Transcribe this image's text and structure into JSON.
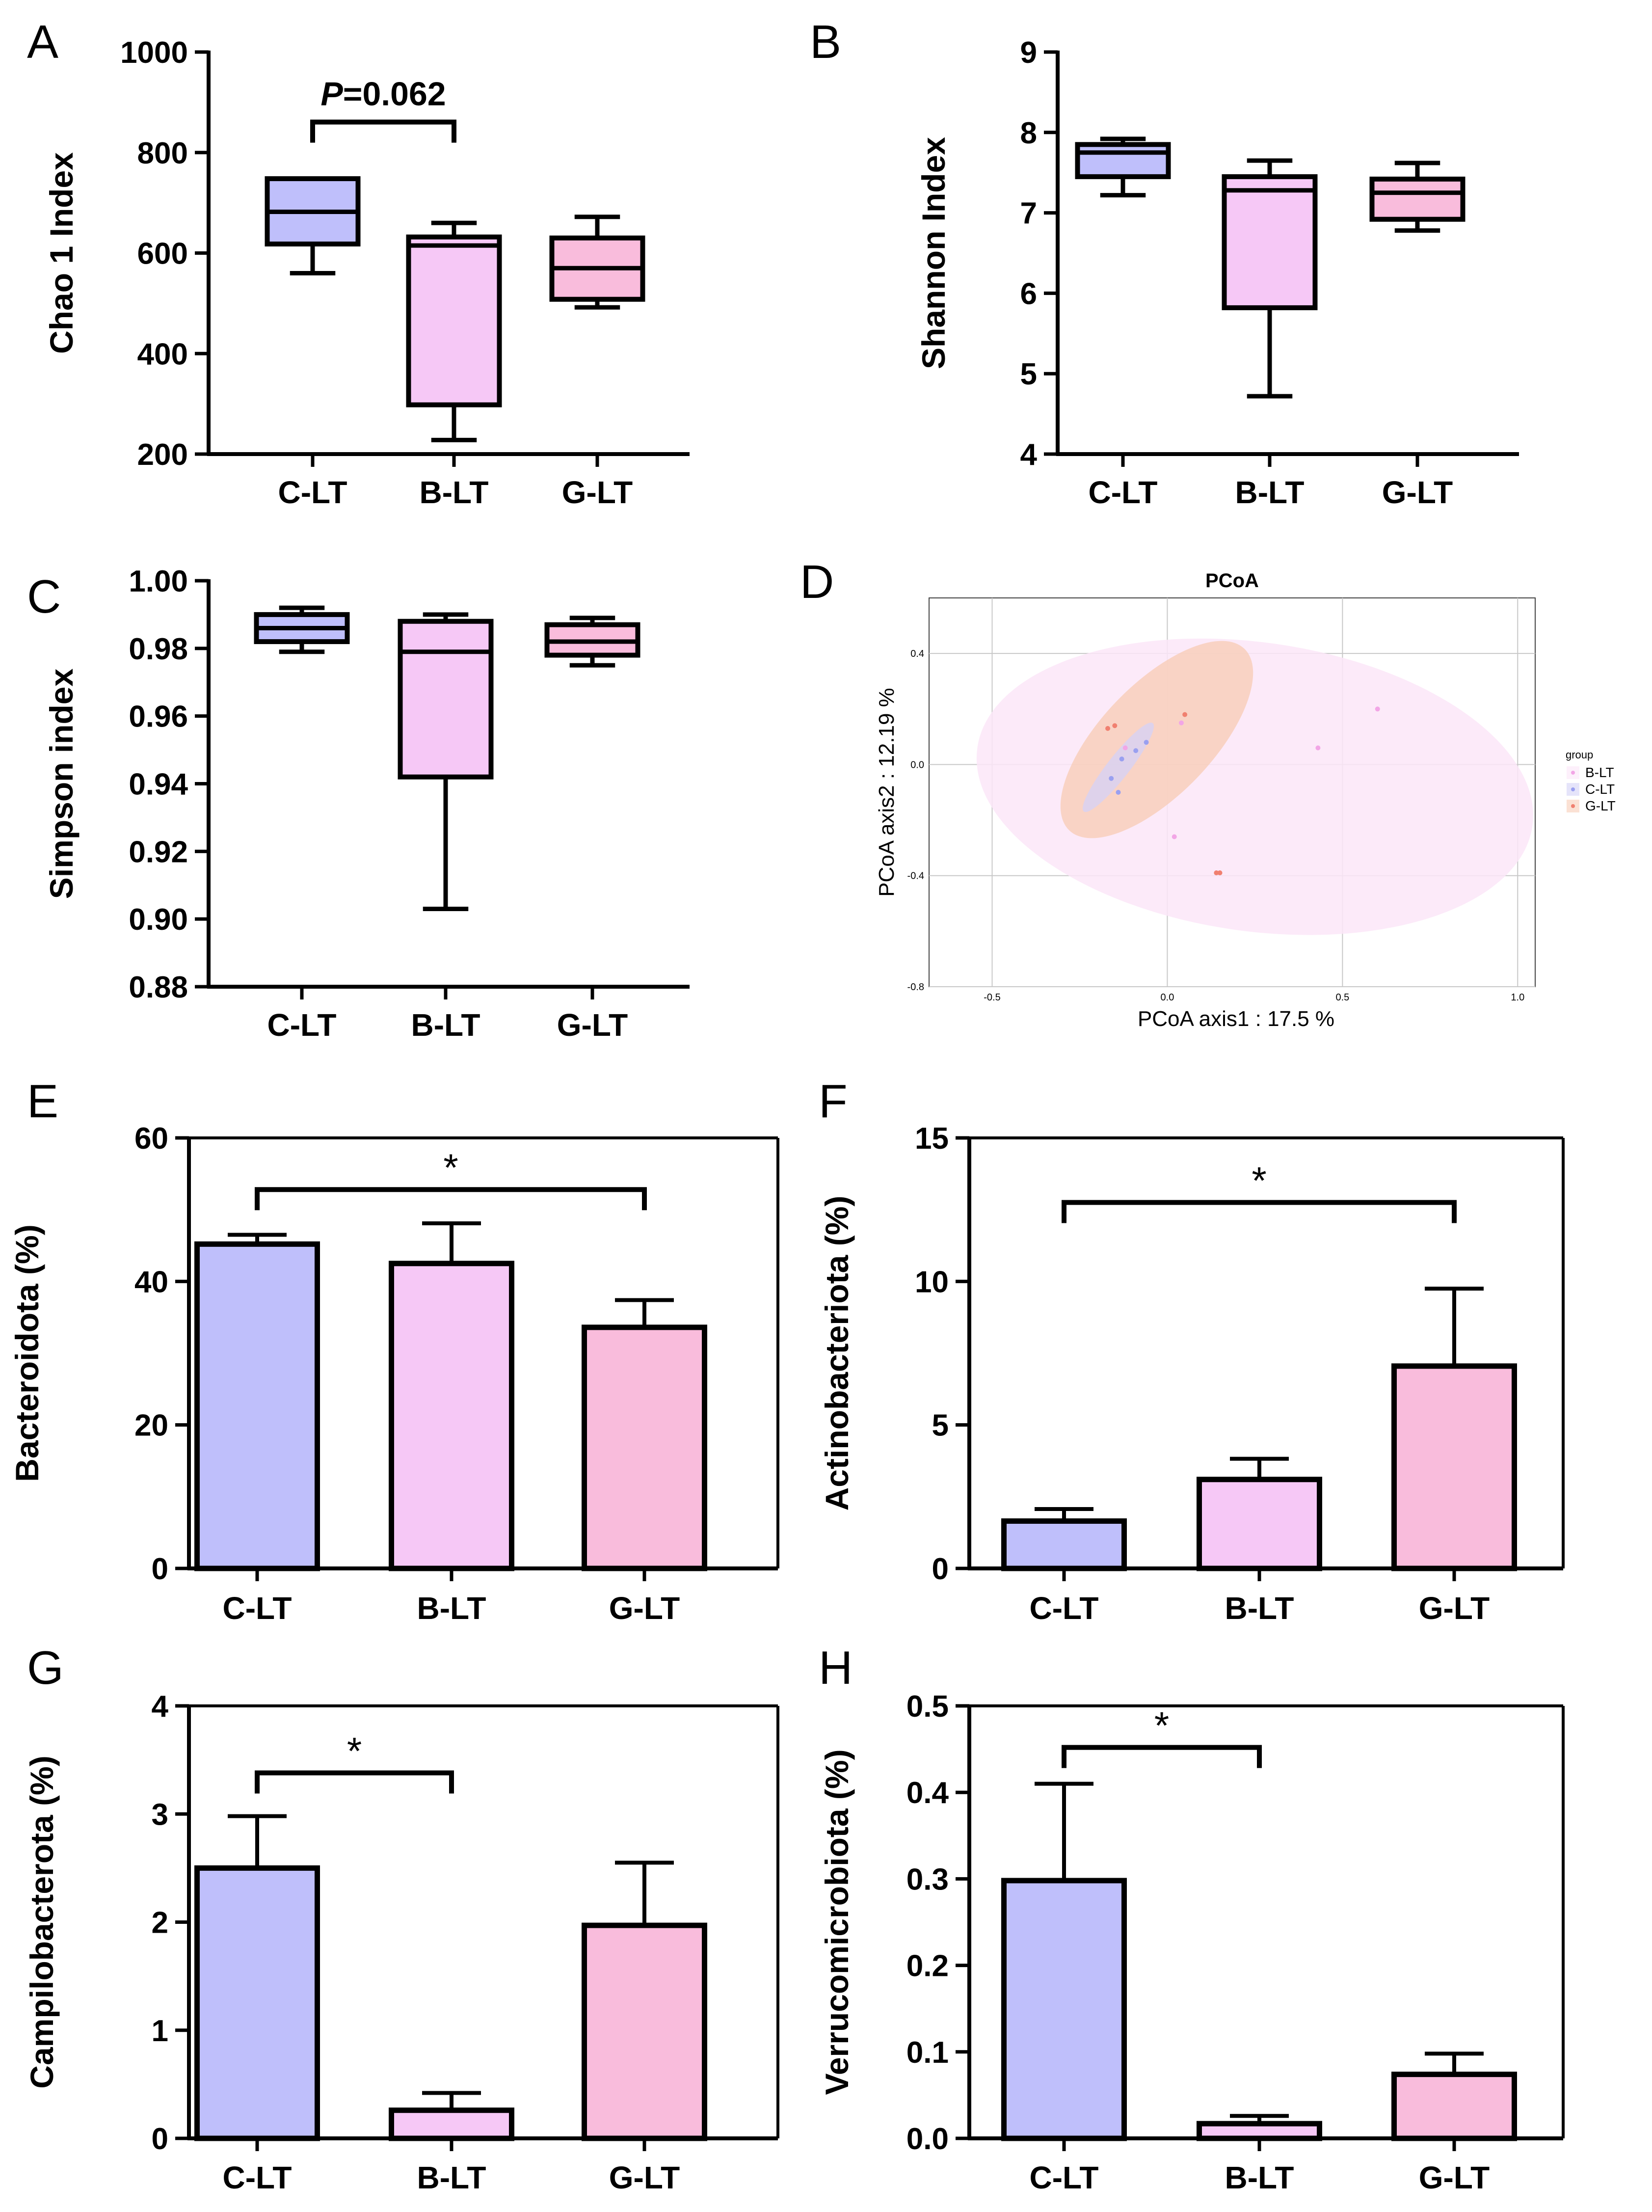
{
  "colors": {
    "C-LT": "#bfbffb",
    "B-LT": "#f6c8f6",
    "G-LT": "#f9bcdc",
    "ellipse_B": "#fbe6f8",
    "ellipse_C": "#d4d2f7",
    "ellipse_G": "#f8cdb8",
    "point_B": "#f2a6e6",
    "point_C": "#9aa0f0",
    "point_G": "#f08070"
  },
  "chart_data": [
    {
      "id": "A",
      "panel_letter": "A",
      "type": "box",
      "categories": [
        "C-LT",
        "B-LT",
        "G-LT"
      ],
      "ylabel": "Chao 1 Index",
      "ylim": [
        200,
        1000
      ],
      "yticks": [
        200,
        400,
        600,
        800,
        1000
      ],
      "yticklabels": [
        "200",
        "400",
        "600",
        "800",
        "1000"
      ],
      "boxes": [
        {
          "min": 560,
          "q1": 618,
          "median": 682,
          "q3": 748,
          "max": 748
        },
        {
          "min": 228,
          "q1": 298,
          "median": 615,
          "q3": 632,
          "max": 660
        },
        {
          "min": 492,
          "q1": 508,
          "median": 570,
          "q3": 630,
          "max": 672
        }
      ],
      "annotations": [
        {
          "kind": "text",
          "italic_part": "P",
          "rest": "=0.062",
          "from": 0,
          "to": 1,
          "y": 890
        }
      ]
    },
    {
      "id": "B",
      "panel_letter": "B",
      "type": "box",
      "categories": [
        "C-LT",
        "B-LT",
        "G-LT"
      ],
      "ylabel": "Shannon Index",
      "ylim": [
        4,
        9
      ],
      "yticks": [
        4,
        5,
        6,
        7,
        8,
        9
      ],
      "yticklabels": [
        "4",
        "5",
        "6",
        "7",
        "8",
        "9"
      ],
      "boxes": [
        {
          "min": 7.22,
          "q1": 7.45,
          "median": 7.75,
          "q3": 7.85,
          "max": 7.92
        },
        {
          "min": 4.72,
          "q1": 5.82,
          "median": 7.28,
          "q3": 7.45,
          "max": 7.65
        },
        {
          "min": 6.78,
          "q1": 6.92,
          "median": 7.25,
          "q3": 7.42,
          "max": 7.62
        }
      ],
      "annotations": []
    },
    {
      "id": "C",
      "panel_letter": "C",
      "type": "box",
      "categories": [
        "C-LT",
        "B-LT",
        "G-LT"
      ],
      "ylabel": "Simpson index",
      "ylim": [
        0.88,
        1.0
      ],
      "yticks": [
        0.88,
        0.9,
        0.92,
        0.94,
        0.96,
        0.98,
        1.0
      ],
      "yticklabels": [
        "0.88",
        "0.90",
        "0.92",
        "0.94",
        "0.96",
        "0.98",
        "1.00"
      ],
      "boxes": [
        {
          "min": 0.979,
          "q1": 0.982,
          "median": 0.986,
          "q3": 0.99,
          "max": 0.992
        },
        {
          "min": 0.903,
          "q1": 0.942,
          "median": 0.979,
          "q3": 0.988,
          "max": 0.99
        },
        {
          "min": 0.975,
          "q1": 0.978,
          "median": 0.982,
          "q3": 0.987,
          "max": 0.989
        }
      ],
      "annotations": []
    },
    {
      "id": "D",
      "panel_letter": "D",
      "type": "scatter",
      "title": "PCoA",
      "xlabel": "PCoA axis1 : 17.5 %",
      "ylabel": "PCoA axis2 : 12.19 %",
      "xlim": [
        -0.68,
        1.05
      ],
      "ylim": [
        -0.8,
        0.6
      ],
      "xticks": [
        -0.5,
        0.0,
        0.5,
        1.0
      ],
      "xticklabels": [
        "-0.5",
        "0.0",
        "0.5",
        "1.0"
      ],
      "yticks": [
        -0.8,
        -0.4,
        0.0,
        0.4
      ],
      "yticklabels": [
        "-0.8",
        "-0.4",
        "0.0",
        "0.4"
      ],
      "legend_title": "group",
      "legend": [
        "B-LT",
        "C-LT",
        "G-LT"
      ],
      "ellipses": [
        {
          "group": "B-LT",
          "cx": 0.25,
          "cy": -0.08,
          "rx": 0.8,
          "ry": 0.52,
          "angle": 8
        },
        {
          "group": "G-LT",
          "cx": -0.03,
          "cy": 0.09,
          "rx": 0.36,
          "ry": 0.2,
          "angle": -46
        },
        {
          "group": "C-LT",
          "cx": -0.14,
          "cy": -0.01,
          "rx": 0.16,
          "ry": 0.04,
          "angle": -52
        }
      ],
      "points": [
        {
          "group": "B-LT",
          "x": 0.6,
          "y": 0.2
        },
        {
          "group": "B-LT",
          "x": 0.43,
          "y": 0.06
        },
        {
          "group": "B-LT",
          "x": 0.02,
          "y": -0.26
        },
        {
          "group": "B-LT",
          "x": -0.12,
          "y": 0.06
        },
        {
          "group": "B-LT",
          "x": 0.04,
          "y": 0.15
        },
        {
          "group": "C-LT",
          "x": -0.16,
          "y": -0.05
        },
        {
          "group": "C-LT",
          "x": -0.13,
          "y": 0.02
        },
        {
          "group": "C-LT",
          "x": -0.09,
          "y": 0.05
        },
        {
          "group": "C-LT",
          "x": -0.14,
          "y": -0.1
        },
        {
          "group": "C-LT",
          "x": -0.06,
          "y": 0.08
        },
        {
          "group": "G-LT",
          "x": -0.17,
          "y": 0.13
        },
        {
          "group": "G-LT",
          "x": -0.15,
          "y": 0.14
        },
        {
          "group": "G-LT",
          "x": 0.05,
          "y": 0.18
        },
        {
          "group": "G-LT",
          "x": 0.15,
          "y": -0.39
        },
        {
          "group": "G-LT",
          "x": 0.14,
          "y": -0.39
        }
      ]
    },
    {
      "id": "E",
      "panel_letter": "E",
      "type": "bar",
      "categories": [
        "C-LT",
        "B-LT",
        "G-LT"
      ],
      "ylabel": "Bacteroidota (%)",
      "ylim": [
        0,
        60
      ],
      "yticks": [
        0,
        20,
        40,
        60
      ],
      "yticklabels": [
        "0",
        "20",
        "40",
        "60"
      ],
      "values": [
        45.2,
        42.5,
        33.6
      ],
      "errors": [
        1.3,
        5.6,
        3.8
      ],
      "annotations": [
        {
          "kind": "star",
          "text": "*",
          "from": 0,
          "to": 2,
          "y": 52.8
        }
      ]
    },
    {
      "id": "F",
      "panel_letter": "F",
      "type": "bar",
      "categories": [
        "C-LT",
        "B-LT",
        "G-LT"
      ],
      "ylabel": "Actinobacteriota (%)",
      "ylim": [
        0,
        15
      ],
      "yticks": [
        0,
        5,
        10,
        15
      ],
      "yticklabels": [
        "0",
        "5",
        "10",
        "15"
      ],
      "values": [
        1.65,
        3.1,
        7.05
      ],
      "errors": [
        0.42,
        0.72,
        2.7
      ],
      "annotations": [
        {
          "kind": "star",
          "text": "*",
          "from": 0,
          "to": 2,
          "y": 12.75
        }
      ]
    },
    {
      "id": "G",
      "panel_letter": "G",
      "type": "bar",
      "categories": [
        "C-LT",
        "B-LT",
        "G-LT"
      ],
      "ylabel": "Campilobacterota (%)",
      "ylim": [
        0,
        4
      ],
      "yticks": [
        0,
        1,
        2,
        3,
        4
      ],
      "yticklabels": [
        "0",
        "1",
        "2",
        "3",
        "4"
      ],
      "values": [
        2.5,
        0.26,
        1.97
      ],
      "errors": [
        0.48,
        0.16,
        0.58
      ],
      "annotations": [
        {
          "kind": "star",
          "text": "*",
          "from": 0,
          "to": 1,
          "y": 3.38
        }
      ]
    },
    {
      "id": "H",
      "panel_letter": "H",
      "type": "bar",
      "categories": [
        "C-LT",
        "B-LT",
        "G-LT"
      ],
      "ylabel": "Verrucomicrobiota (%)",
      "ylim": [
        0,
        0.5
      ],
      "yticks": [
        0,
        0.1,
        0.2,
        0.3,
        0.4,
        0.5
      ],
      "yticklabels": [
        "0.0",
        "0.1",
        "0.2",
        "0.3",
        "0.4",
        "0.5"
      ],
      "values": [
        0.298,
        0.017,
        0.074
      ],
      "errors": [
        0.112,
        0.009,
        0.024
      ],
      "annotations": [
        {
          "kind": "star",
          "text": "*",
          "from": 0,
          "to": 1,
          "y": 0.452
        }
      ]
    }
  ]
}
